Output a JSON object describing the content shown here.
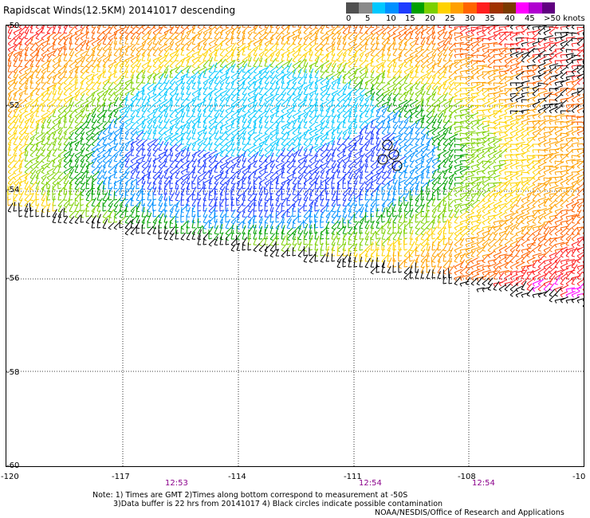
{
  "title": "Rapidscat Winds(12.5KM) 20141017 descending",
  "legend": {
    "colors": [
      "#505050",
      "#8a8a8a",
      "#00c8ff",
      "#0090ff",
      "#1e3cff",
      "#00a000",
      "#7cd000",
      "#ffd200",
      "#ffa000",
      "#ff6400",
      "#ff1e1e",
      "#a03200",
      "#7a3a00",
      "#ff00ff",
      "#b000d0",
      "#600080"
    ],
    "labels": [
      "0",
      "5",
      "10",
      "15",
      "20",
      "25",
      "30",
      "35",
      "40",
      "45",
      ">50 knots"
    ]
  },
  "map": {
    "lat_labels": [
      "-50",
      "-52",
      "-54",
      "-56",
      "-58",
      "-60"
    ],
    "lon_labels": [
      "-120",
      "-117",
      "-114",
      "-111",
      "-108",
      "-10"
    ],
    "time_labels": [
      "12:53",
      "12:54",
      "12:54"
    ]
  },
  "notes": {
    "line1": "Note: 1) Times are GMT 2)Times along bottom correspond to measurement at -50S",
    "line2": "3)Data buffer is 22 hrs from 20141017 4) Black circles indicate possible contamination",
    "credit": "NOAA/NESDIS/Office of Research and Applications"
  }
}
